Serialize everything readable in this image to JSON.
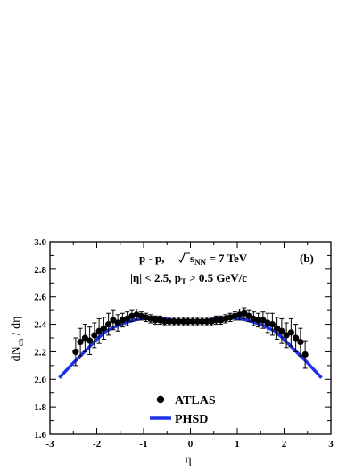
{
  "chart_data": {
    "type": "scatter",
    "title": "",
    "xlabel": "η",
    "ylabel": "dN_ch / dη",
    "xlim": [
      -3,
      3
    ],
    "ylim": [
      1.6,
      3.0
    ],
    "x_ticks": [
      -3,
      -2,
      -1,
      0,
      1,
      2,
      3
    ],
    "x_tick_labels": [
      "-3",
      "-2",
      "-1",
      "0",
      "1",
      "2",
      "3"
    ],
    "y_ticks": [
      1.6,
      1.8,
      2.0,
      2.2,
      2.4,
      2.6,
      2.8,
      3.0
    ],
    "y_tick_labels": [
      "1.6",
      "1.8",
      "2.0",
      "2.2",
      "2.4",
      "2.6",
      "2.8",
      "3.0"
    ],
    "grid": false,
    "legend_position": "bottom-center",
    "annotations": {
      "system": "p - p,",
      "energy_prefix": "s",
      "energy_sub": "NN",
      "energy_value": " = 7 TeV",
      "cut_eta": "|η| < 2.5,  p",
      "cut_pt_sub": "T",
      "cut_pt_value": "> 0.5 GeV/c",
      "panel": "(b)"
    },
    "series": [
      {
        "name": "ATLAS",
        "marker": "circle",
        "color": "#000000",
        "x": [
          -2.45,
          -2.35,
          -2.25,
          -2.15,
          -2.05,
          -1.95,
          -1.85,
          -1.75,
          -1.65,
          -1.55,
          -1.45,
          -1.35,
          -1.25,
          -1.15,
          -1.05,
          -0.95,
          -0.85,
          -0.75,
          -0.65,
          -0.55,
          -0.45,
          -0.35,
          -0.25,
          -0.15,
          -0.05,
          0.05,
          0.15,
          0.25,
          0.35,
          0.45,
          0.55,
          0.65,
          0.75,
          0.85,
          0.95,
          1.05,
          1.15,
          1.25,
          1.35,
          1.45,
          1.55,
          1.65,
          1.75,
          1.85,
          1.95,
          2.05,
          2.15,
          2.25,
          2.35,
          2.45
        ],
        "y": [
          2.2,
          2.27,
          2.3,
          2.28,
          2.32,
          2.35,
          2.37,
          2.4,
          2.43,
          2.41,
          2.43,
          2.44,
          2.46,
          2.47,
          2.46,
          2.45,
          2.44,
          2.43,
          2.43,
          2.42,
          2.42,
          2.42,
          2.42,
          2.42,
          2.42,
          2.42,
          2.42,
          2.42,
          2.42,
          2.42,
          2.43,
          2.43,
          2.44,
          2.45,
          2.46,
          2.47,
          2.48,
          2.46,
          2.44,
          2.43,
          2.43,
          2.41,
          2.4,
          2.37,
          2.35,
          2.32,
          2.34,
          2.3,
          2.27,
          2.18
        ],
        "yerr": [
          0.1,
          0.1,
          0.1,
          0.1,
          0.09,
          0.09,
          0.08,
          0.08,
          0.07,
          0.06,
          0.05,
          0.05,
          0.04,
          0.04,
          0.03,
          0.03,
          0.03,
          0.03,
          0.03,
          0.03,
          0.03,
          0.03,
          0.03,
          0.03,
          0.03,
          0.03,
          0.03,
          0.03,
          0.03,
          0.03,
          0.03,
          0.03,
          0.03,
          0.03,
          0.03,
          0.04,
          0.04,
          0.04,
          0.05,
          0.05,
          0.06,
          0.07,
          0.08,
          0.08,
          0.09,
          0.09,
          0.1,
          0.1,
          0.1,
          0.1
        ]
      },
      {
        "name": "PHSD",
        "type": "line",
        "color": "#1f33e6",
        "x": [
          -2.8,
          -2.5,
          -2.2,
          -2.0,
          -1.8,
          -1.5,
          -1.2,
          -0.9,
          -0.8,
          -0.6,
          -0.4,
          -0.2,
          0.0,
          0.2,
          0.4,
          0.6,
          0.8,
          0.9,
          1.2,
          1.5,
          1.8,
          2.0,
          2.2,
          2.5,
          2.8
        ],
        "y": [
          2.01,
          2.12,
          2.22,
          2.29,
          2.35,
          2.4,
          2.43,
          2.45,
          2.45,
          2.44,
          2.43,
          2.42,
          2.42,
          2.42,
          2.43,
          2.44,
          2.45,
          2.45,
          2.43,
          2.4,
          2.35,
          2.29,
          2.22,
          2.12,
          2.01
        ]
      }
    ]
  }
}
